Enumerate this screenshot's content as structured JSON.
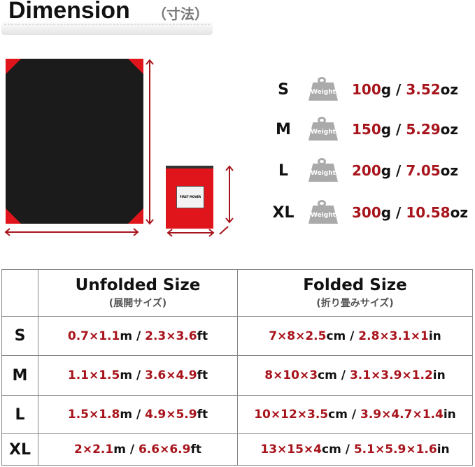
{
  "header": {
    "title": "Dimension",
    "subtitle": "（寸法）"
  },
  "product": {
    "pouch_label": "FIRST MOVER"
  },
  "colors": {
    "accent": "#a8141c",
    "mat": "#1b1b1b",
    "pouch": "#e0141b"
  },
  "weights": [
    {
      "size": "S",
      "icon_label": "Weight",
      "grams": "100",
      "oz": "3.52"
    },
    {
      "size": "M",
      "icon_label": "Weight",
      "grams": "150",
      "oz": "5.29"
    },
    {
      "size": "L",
      "icon_label": "Weight",
      "grams": "200",
      "oz": "7.05"
    },
    {
      "size": "XL",
      "icon_label": "Weight",
      "grams": "300",
      "oz": "10.58"
    }
  ],
  "units": {
    "g": "g",
    "oz": "oz",
    "sep": " / ",
    "m": "m",
    "ft": "ft",
    "cm": "cm",
    "in": "in"
  },
  "table": {
    "headers": [
      {
        "title": "Unfolded Size",
        "sub": "(展開サイズ)"
      },
      {
        "title": "Folded Size",
        "sub": "(折り畳みサイズ)"
      }
    ],
    "rows": [
      {
        "size": "S",
        "unf_m": "0.7×1.1",
        "unf_ft": "2.3×3.6",
        "fold_cm": "7×8×2.5",
        "fold_in": "2.8×3.1×1"
      },
      {
        "size": "M",
        "unf_m": "1.1×1.5",
        "unf_ft": "3.6×4.9",
        "fold_cm": "8×10×3",
        "fold_in": "3.1×3.9×1.2"
      },
      {
        "size": "L",
        "unf_m": "1.5×1.8",
        "unf_ft": "4.9×5.9",
        "fold_cm": "10×12×3.5",
        "fold_in": "3.9×4.7×1.4"
      },
      {
        "size": "XL",
        "unf_m": "2×2.1",
        "unf_ft": "6.6×6.9",
        "fold_cm": "13×15×4",
        "fold_in": "5.1×5.9×1.6"
      }
    ]
  }
}
